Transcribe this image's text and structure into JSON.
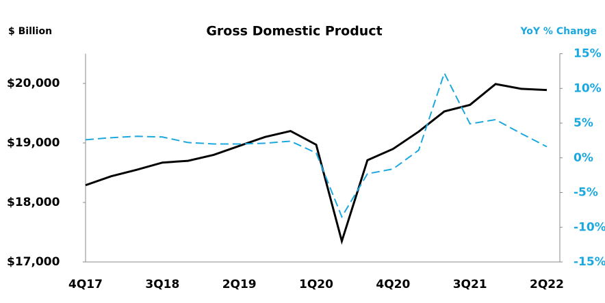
{
  "chart_data": {
    "type": "line",
    "title": "Gross Domestic Product",
    "ylabel": "$ Billion",
    "y2label": "YoY % Change",
    "categories": [
      "4Q17",
      null,
      null,
      "3Q18",
      null,
      null,
      "2Q19",
      null,
      null,
      "1Q20",
      null,
      null,
      "4Q20",
      null,
      null,
      "3Q21",
      null,
      null,
      "2Q22"
    ],
    "series": [
      {
        "color": "#000000",
        "dash": false,
        "values": [
          18290,
          18440,
          18550,
          18670,
          18700,
          18800,
          18950,
          19100,
          19200,
          18970,
          17350,
          18710,
          18900,
          19190,
          19530,
          19640,
          19990,
          19910,
          19890
        ]
      },
      {
        "color": "#1ba8de",
        "dash": true,
        "axis": "y2",
        "values": [
          2.6,
          2.9,
          3.1,
          3.0,
          2.2,
          2.0,
          2.0,
          2.1,
          2.4,
          0.7,
          -8.5,
          -2.3,
          -1.6,
          1.1,
          12.2,
          4.9,
          5.5,
          3.5,
          1.6
        ]
      }
    ],
    "ylim": [
      17000,
      20500
    ],
    "yticks": [
      {
        "value": 17000,
        "label": "$17,000"
      },
      {
        "value": 18000,
        "label": "$18,000"
      },
      {
        "value": 19000,
        "label": "$19,000"
      },
      {
        "value": 20000,
        "label": "$20,000"
      }
    ],
    "y2lim": [
      -15,
      15
    ],
    "y2ticks": [
      {
        "value": -15,
        "label": "-15%"
      },
      {
        "value": -10,
        "label": "-10%"
      },
      {
        "value": -5,
        "label": "-5%"
      },
      {
        "value": 0,
        "label": "0%"
      },
      {
        "value": 5,
        "label": "5%"
      },
      {
        "value": 10,
        "label": "10%"
      },
      {
        "value": 15,
        "label": "15%"
      }
    ],
    "y2color": "#1ba8de"
  }
}
